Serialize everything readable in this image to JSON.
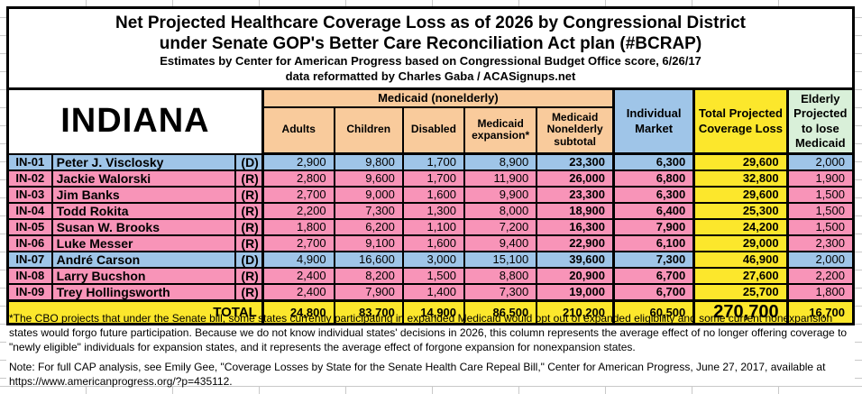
{
  "title": {
    "line1": "Net Projected Healthcare Coverage Loss as of 2026 by Congressional District",
    "line2": "under Senate GOP's Better Care Reconciliation Act plan (#BCRAP)",
    "line3": "Estimates by Center for American Progress based on Congressional Budget Office score, 6/26/17",
    "line4": "data reformatted by Charles Gaba / ACASignups.net"
  },
  "state": "INDIANA",
  "table": {
    "group_header": "Medicaid (nonelderly)",
    "medicaid_columns": [
      "Adults",
      "Children",
      "Disabled",
      "Medicaid expansion*",
      "Medicaid Nonelderly subtotal"
    ],
    "individual_market_header": "Individual Market",
    "total_header": "Total Projected Coverage Loss",
    "elderly_header": "Elderly Projected to lose Medicaid",
    "rows": [
      {
        "district": "IN-01",
        "rep": "Peter J. Visclosky",
        "party": "(D)",
        "values": [
          "2,900",
          "9,800",
          "1,700",
          "8,900",
          "23,300",
          "6,300",
          "29,600",
          "2,000"
        ]
      },
      {
        "district": "IN-02",
        "rep": "Jackie Walorski",
        "party": "(R)",
        "values": [
          "2,800",
          "9,600",
          "1,700",
          "11,900",
          "26,000",
          "6,800",
          "32,800",
          "1,900"
        ]
      },
      {
        "district": "IN-03",
        "rep": "Jim Banks",
        "party": "(R)",
        "values": [
          "2,700",
          "9,000",
          "1,600",
          "9,900",
          "23,300",
          "6,300",
          "29,600",
          "1,500"
        ]
      },
      {
        "district": "IN-04",
        "rep": "Todd Rokita",
        "party": "(R)",
        "values": [
          "2,200",
          "7,300",
          "1,300",
          "8,000",
          "18,900",
          "6,400",
          "25,300",
          "1,500"
        ]
      },
      {
        "district": "IN-05",
        "rep": "Susan W. Brooks",
        "party": "(R)",
        "values": [
          "1,800",
          "6,200",
          "1,100",
          "7,200",
          "16,300",
          "7,900",
          "24,200",
          "1,500"
        ]
      },
      {
        "district": "IN-06",
        "rep": "Luke Messer",
        "party": "(R)",
        "values": [
          "2,700",
          "9,100",
          "1,600",
          "9,400",
          "22,900",
          "6,100",
          "29,000",
          "2,300"
        ]
      },
      {
        "district": "IN-07",
        "rep": "André Carson",
        "party": "(D)",
        "values": [
          "4,900",
          "16,600",
          "3,000",
          "15,100",
          "39,600",
          "7,300",
          "46,900",
          "2,000"
        ]
      },
      {
        "district": "IN-08",
        "rep": "Larry Bucshon",
        "party": "(R)",
        "values": [
          "2,400",
          "8,200",
          "1,500",
          "8,800",
          "20,900",
          "6,700",
          "27,600",
          "2,200"
        ]
      },
      {
        "district": "IN-09",
        "rep": "Trey Hollingsworth",
        "party": "(R)",
        "values": [
          "2,400",
          "7,900",
          "1,400",
          "7,300",
          "19,000",
          "6,700",
          "25,700",
          "1,800"
        ]
      }
    ],
    "total_label": "TOTAL",
    "total_values": [
      "24,800",
      "83,700",
      "14,900",
      "86,500",
      "210,200",
      "60,500",
      "270,700",
      "16,700"
    ]
  },
  "footnote": "*The CBO projects that under the Senate bill, some states currently participating in expanded Medicaid would opt out of expanded eligibility and some current nonexpansion states would forgo future participation. Because we do not know individual states' decisions in 2026, this column represents the average effect of no longer offering coverage to \"newly eligible\" individuals for expansion states, and it represents the average effect of forgone expansion for nonexpansion states.",
  "endnote": "Note: For full CAP analysis, see Emily Gee, \"Coverage Losses by State for the Senate Health Care Repeal Bill,\" Center for American Progress, June 27, 2017, available at https://www.americanprogress.org/?p=435112.",
  "colors": {
    "orange": "#F9CB9C",
    "blue": "#9FC5E8",
    "pink": "#F894B8",
    "yellow": "#FCE72C",
    "green": "#D9F0D9"
  }
}
